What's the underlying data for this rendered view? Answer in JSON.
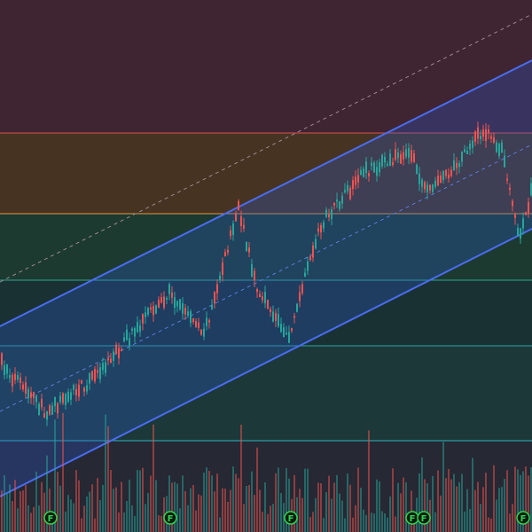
{
  "markers": [
    {
      "label": "F"
    },
    {
      "label": "F"
    },
    {
      "label": "F"
    },
    {
      "label": "F"
    },
    {
      "label": "F"
    },
    {
      "label": "F"
    }
  ]
}
